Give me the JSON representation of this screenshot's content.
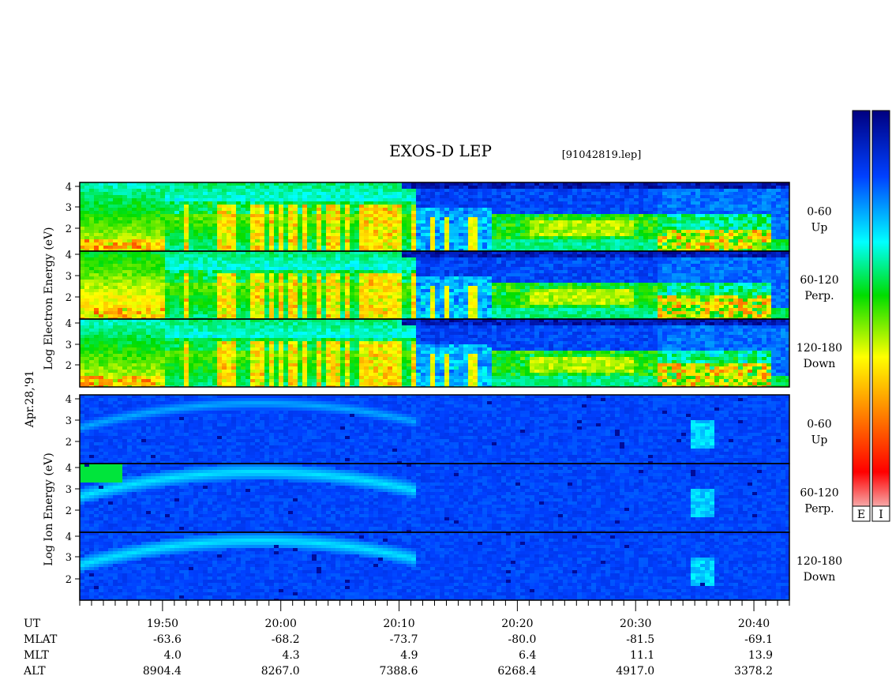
{
  "title": "EXOS-D LEP",
  "file_label": "[91042819.lep]",
  "date_label": "Apr.28,'91",
  "electron_group_label": "Log   Electron   Energy (eV)",
  "ion_group_label": "Log   Ion   Energy (eV)",
  "panels": [
    {
      "species": "electron",
      "pitch_range": "0-60",
      "direction": "Up"
    },
    {
      "species": "electron",
      "pitch_range": "60-120",
      "direction": "Perp."
    },
    {
      "species": "electron",
      "pitch_range": "120-180",
      "direction": "Down"
    },
    {
      "species": "ion",
      "pitch_range": "0-60",
      "direction": "Up"
    },
    {
      "species": "ion",
      "pitch_range": "60-120",
      "direction": "Perp."
    },
    {
      "species": "ion",
      "pitch_range": "120-180",
      "direction": "Down"
    }
  ],
  "y_ticks": [
    "2",
    "3",
    "4"
  ],
  "colorbar_labels": [
    "E",
    "I"
  ],
  "colormap": [
    "#f2f2f2",
    "#ff0000",
    "#ff8000",
    "#ffff00",
    "#00dd00",
    "#00ffff",
    "#0040ff",
    "#000080"
  ],
  "ephemeris": {
    "row_labels": [
      "UT",
      "MLAT",
      "MLT",
      "ALT"
    ],
    "columns": [
      {
        "UT": "19:50",
        "MLAT": "-63.6",
        "MLT": "4.0",
        "ALT": "8904.4"
      },
      {
        "UT": "20:00",
        "MLAT": "-68.2",
        "MLT": "4.3",
        "ALT": "8267.0"
      },
      {
        "UT": "20:10",
        "MLAT": "-73.7",
        "MLT": "4.9",
        "ALT": "7388.6"
      },
      {
        "UT": "20:20",
        "MLAT": "-80.0",
        "MLT": "6.4",
        "ALT": "6268.4"
      },
      {
        "UT": "20:30",
        "MLAT": "-81.5",
        "MLT": "11.1",
        "ALT": "4917.0"
      },
      {
        "UT": "20:40",
        "MLAT": "-69.1",
        "MLT": "13.9",
        "ALT": "3378.2"
      }
    ]
  },
  "chart_data": {
    "type": "heatmap",
    "title": "EXOS-D LEP",
    "xlabel": "UT",
    "ylabel": "Log Energy (eV)",
    "x_ticks": [
      "19:50",
      "20:00",
      "20:10",
      "20:20",
      "20:30",
      "20:40"
    ],
    "xlim": [
      "19:43",
      "20:43"
    ],
    "ylim": [
      1,
      4.15
    ],
    "y_ticks": [
      2,
      3,
      4
    ]
  }
}
